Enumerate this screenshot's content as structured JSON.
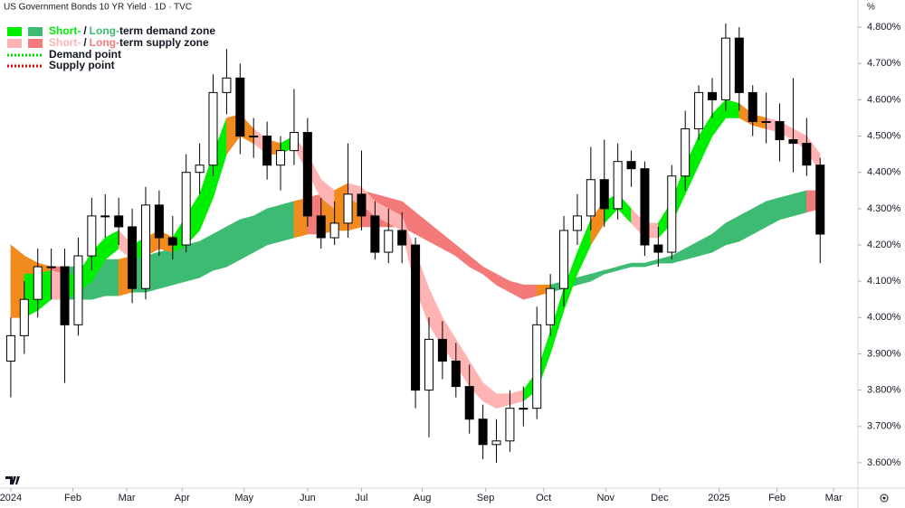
{
  "chart_data": {
    "type": "candlestick",
    "title": "US Government Bonds 10 YR Yield · 1D · TVC",
    "unit": "%",
    "x": [
      0,
      1,
      2,
      3,
      4,
      5,
      6,
      7,
      8,
      9,
      10,
      11,
      12,
      13,
      14,
      15,
      16,
      17,
      18,
      19,
      20,
      21,
      22,
      23,
      24,
      25,
      26,
      27,
      28,
      29,
      30,
      31,
      32,
      33,
      34,
      35,
      36,
      37,
      38,
      39,
      40,
      41,
      42,
      43,
      44,
      45,
      46,
      47,
      48,
      49,
      50,
      51,
      52,
      53,
      54,
      55,
      56,
      57,
      58,
      59,
      60
    ],
    "open": [
      3.88,
      3.95,
      4.05,
      4.14,
      4.14,
      3.98,
      4.17,
      4.28,
      4.28,
      4.25,
      4.08,
      4.31,
      4.22,
      4.2,
      4.4,
      4.42,
      4.62,
      4.66,
      4.5,
      4.5,
      4.42,
      4.46,
      4.51,
      4.28,
      4.22,
      4.26,
      4.34,
      4.28,
      4.18,
      4.24,
      4.2,
      3.8,
      3.94,
      3.88,
      3.81,
      3.72,
      3.65,
      3.66,
      3.75,
      3.75,
      3.98,
      4.08,
      4.24,
      4.28,
      4.38,
      4.3,
      4.43,
      4.41,
      4.2,
      4.18,
      4.39,
      4.52,
      4.62,
      4.6,
      4.77,
      4.62,
      4.54,
      4.54,
      4.49,
      4.48,
      4.42
    ],
    "high": [
      4.0,
      4.1,
      4.19,
      4.19,
      4.19,
      4.22,
      4.33,
      4.34,
      4.33,
      4.3,
      4.36,
      4.35,
      4.28,
      4.45,
      4.48,
      4.67,
      4.74,
      4.7,
      4.55,
      4.54,
      4.5,
      4.63,
      4.55,
      4.33,
      4.32,
      4.48,
      4.46,
      4.32,
      4.3,
      4.29,
      4.22,
      4.0,
      3.99,
      3.93,
      3.87,
      3.76,
      3.72,
      3.8,
      3.81,
      4.03,
      4.12,
      4.28,
      4.34,
      4.47,
      4.49,
      4.48,
      4.46,
      4.43,
      4.25,
      4.42,
      4.57,
      4.64,
      4.66,
      4.81,
      4.8,
      4.64,
      4.62,
      4.59,
      4.66,
      4.55,
      4.44
    ],
    "low": [
      3.78,
      3.9,
      4.0,
      4.05,
      3.82,
      3.95,
      4.13,
      4.22,
      4.2,
      4.04,
      4.05,
      4.17,
      4.16,
      4.18,
      4.34,
      4.39,
      4.56,
      4.45,
      4.44,
      4.38,
      4.35,
      4.42,
      4.25,
      4.19,
      4.2,
      4.22,
      4.24,
      4.16,
      4.15,
      4.15,
      3.75,
      3.67,
      3.83,
      3.78,
      3.68,
      3.61,
      3.6,
      3.63,
      3.7,
      3.72,
      3.95,
      4.03,
      4.2,
      4.24,
      4.25,
      4.27,
      4.36,
      4.17,
      4.14,
      4.16,
      4.35,
      4.49,
      4.55,
      4.57,
      4.57,
      4.5,
      4.48,
      4.43,
      4.4,
      4.39,
      4.15
    ],
    "close": [
      3.95,
      4.05,
      4.14,
      4.14,
      3.98,
      4.17,
      4.28,
      4.28,
      4.25,
      4.08,
      4.31,
      4.22,
      4.2,
      4.4,
      4.42,
      4.62,
      4.66,
      4.5,
      4.5,
      4.42,
      4.46,
      4.51,
      4.28,
      4.22,
      4.26,
      4.34,
      4.28,
      4.18,
      4.24,
      4.2,
      3.8,
      3.94,
      3.88,
      3.81,
      3.72,
      3.65,
      3.66,
      3.75,
      3.75,
      3.98,
      4.08,
      4.24,
      4.28,
      4.38,
      4.3,
      4.43,
      4.41,
      4.2,
      4.18,
      4.39,
      4.52,
      4.62,
      4.6,
      4.77,
      4.62,
      4.54,
      4.54,
      4.49,
      4.48,
      4.42,
      4.23
    ],
    "up_color": "#ffffff",
    "down_color": "#000000",
    "bands": [
      {
        "upper": [
          4.2,
          4.17,
          4.15,
          4.14,
          4.14,
          4.14,
          4.15,
          4.16,
          4.16,
          4.17,
          4.17,
          4.18,
          4.19,
          4.2,
          4.21,
          4.23,
          4.25,
          4.27,
          4.28,
          4.3,
          4.31,
          4.32,
          4.33,
          4.34,
          4.34,
          4.35,
          4.35,
          4.34,
          4.33,
          4.32,
          4.29,
          4.26,
          4.23,
          4.2,
          4.17,
          4.14,
          4.12,
          4.1,
          4.09,
          4.09,
          4.09,
          4.1,
          4.11,
          4.12,
          4.13,
          4.14,
          4.15,
          4.15,
          4.16,
          4.17,
          4.19,
          4.21,
          4.23,
          4.26,
          4.28,
          4.3,
          4.32,
          4.33,
          4.34,
          4.35,
          4.35
        ],
        "lower": [
          4.05,
          4.05,
          4.05,
          4.05,
          4.05,
          4.05,
          4.05,
          4.06,
          4.06,
          4.07,
          4.07,
          4.08,
          4.09,
          4.1,
          4.11,
          4.13,
          4.14,
          4.16,
          4.18,
          4.2,
          4.21,
          4.22,
          4.23,
          4.23,
          4.24,
          4.24,
          4.25,
          4.25,
          4.25,
          4.25,
          4.23,
          4.21,
          4.19,
          4.17,
          4.14,
          4.12,
          4.09,
          4.07,
          4.05,
          4.06,
          4.07,
          4.08,
          4.09,
          4.1,
          4.12,
          4.13,
          4.14,
          4.14,
          4.15,
          4.15,
          4.16,
          4.17,
          4.18,
          4.2,
          4.21,
          4.23,
          4.25,
          4.27,
          4.28,
          4.29,
          4.3
        ],
        "demand_color": "#3dbb72",
        "supply_color": "#f47a7a",
        "neutral_color": "#f28b1e"
      },
      {
        "upper": [
          4.15,
          4.12,
          4.12,
          4.13,
          4.12,
          4.12,
          4.18,
          4.22,
          4.24,
          4.2,
          4.22,
          4.24,
          4.22,
          4.28,
          4.34,
          4.45,
          4.55,
          4.56,
          4.52,
          4.49,
          4.48,
          4.5,
          4.45,
          4.38,
          4.35,
          4.37,
          4.36,
          4.32,
          4.3,
          4.28,
          4.18,
          4.08,
          4.0,
          3.94,
          3.88,
          3.82,
          3.79,
          3.79,
          3.8,
          3.85,
          3.96,
          4.08,
          4.18,
          4.27,
          4.32,
          4.34,
          4.3,
          4.26,
          4.26,
          4.32,
          4.42,
          4.5,
          4.56,
          4.6,
          4.59,
          4.56,
          4.55,
          4.54,
          4.52,
          4.5,
          4.45
        ],
        "lower": [
          4.0,
          4.0,
          4.02,
          4.05,
          4.05,
          4.07,
          4.1,
          4.16,
          4.19,
          4.16,
          4.17,
          4.19,
          4.18,
          4.2,
          4.24,
          4.33,
          4.45,
          4.5,
          4.48,
          4.45,
          4.45,
          4.47,
          4.4,
          4.33,
          4.3,
          4.33,
          4.31,
          4.28,
          4.26,
          4.24,
          4.08,
          3.98,
          3.92,
          3.87,
          3.81,
          3.77,
          3.75,
          3.76,
          3.77,
          3.8,
          3.9,
          4.02,
          4.12,
          4.2,
          4.26,
          4.3,
          4.26,
          4.22,
          4.22,
          4.26,
          4.34,
          4.42,
          4.5,
          4.55,
          4.55,
          4.53,
          4.52,
          4.51,
          4.49,
          4.46,
          4.4
        ],
        "demand_color": "#00ee00",
        "supply_color": "#ffb3b3",
        "neutral_color": "#f28b1e"
      }
    ],
    "legend": {
      "zones": [
        {
          "parts": [
            "Short-",
            "/",
            "Long-",
            "term demand zone"
          ]
        },
        {
          "parts": [
            "Short-",
            "/",
            "Long-",
            "term supply zone"
          ]
        }
      ],
      "points": [
        {
          "label": "Demand point",
          "color": "#00dd00"
        },
        {
          "label": "Supply point",
          "color": "#e00000"
        }
      ]
    },
    "xlim": [
      -0.8,
      62.6
    ],
    "xticks": [
      {
        "value": 0,
        "label": "2024"
      },
      {
        "value": 4.6,
        "label": "Feb"
      },
      {
        "value": 8.6,
        "label": "Mar"
      },
      {
        "value": 12.7,
        "label": "Apr"
      },
      {
        "value": 17.3,
        "label": "May"
      },
      {
        "value": 22.0,
        "label": "Jun"
      },
      {
        "value": 26.0,
        "label": "Jul"
      },
      {
        "value": 30.5,
        "label": "Aug"
      },
      {
        "value": 35.2,
        "label": "Sep"
      },
      {
        "value": 39.5,
        "label": "Oct"
      },
      {
        "value": 44.1,
        "label": "Nov"
      },
      {
        "value": 48.1,
        "label": "Dec"
      },
      {
        "value": 52.5,
        "label": "2025"
      },
      {
        "value": 56.8,
        "label": "Feb"
      },
      {
        "value": 61.0,
        "label": "Mar"
      }
    ],
    "ylim": [
      3.53,
      4.875
    ],
    "yticks": [
      {
        "value": 3.6,
        "label": "3.600%"
      },
      {
        "value": 3.7,
        "label": "3.700%"
      },
      {
        "value": 3.8,
        "label": "3.800%"
      },
      {
        "value": 3.9,
        "label": "3.900%"
      },
      {
        "value": 4.0,
        "label": "4.000%"
      },
      {
        "value": 4.1,
        "label": "4.100%"
      },
      {
        "value": 4.2,
        "label": "4.200%"
      },
      {
        "value": 4.3,
        "label": "4.300%"
      },
      {
        "value": 4.4,
        "label": "4.400%"
      },
      {
        "value": 4.5,
        "label": "4.500%"
      },
      {
        "value": 4.6,
        "label": "4.600%"
      },
      {
        "value": 4.7,
        "label": "4.700%"
      },
      {
        "value": 4.8,
        "label": "4.800%"
      }
    ]
  }
}
